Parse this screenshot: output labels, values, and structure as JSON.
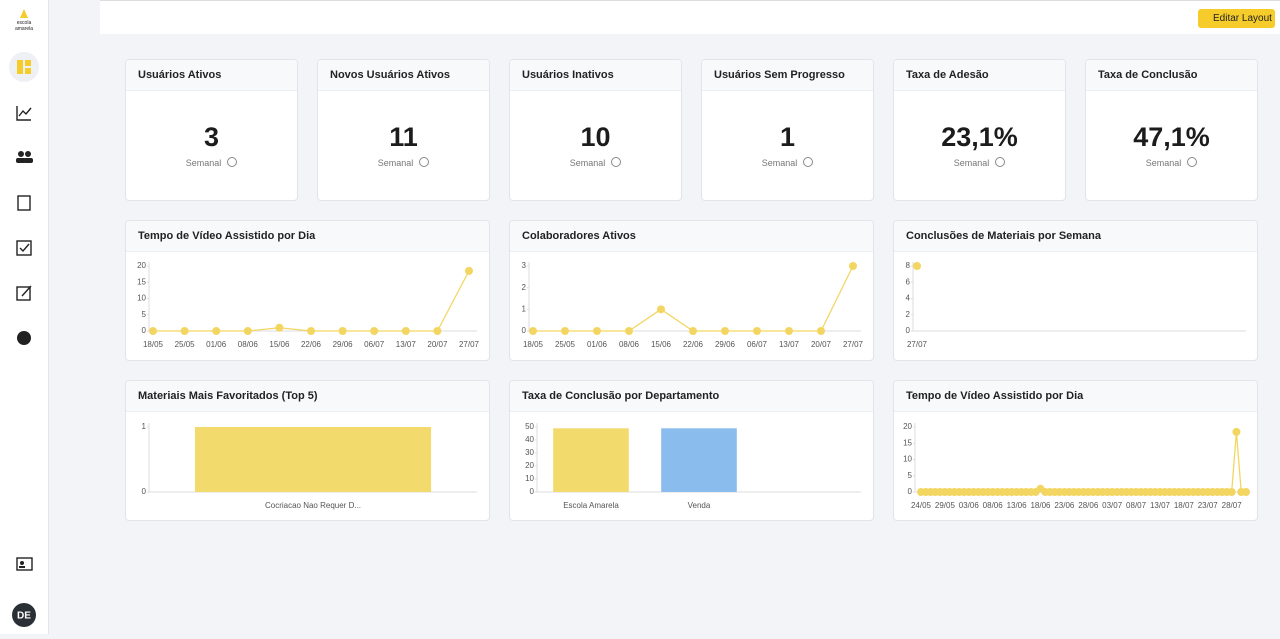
{
  "logo": [
    "escola",
    "amarela"
  ],
  "header": {
    "button": "Editar Layout"
  },
  "avatar": "DE",
  "kpis": [
    {
      "title": "Usuários Ativos",
      "value": "3",
      "period": "Semanal"
    },
    {
      "title": "Novos Usuários Ativos",
      "value": "11",
      "period": "Semanal"
    },
    {
      "title": "Usuários Inativos",
      "value": "10",
      "period": "Semanal"
    },
    {
      "title": "Usuários Sem Progresso",
      "value": "1",
      "period": "Semanal"
    },
    {
      "title": "Taxa de Adesão",
      "value": "23,1%",
      "period": "Semanal"
    },
    {
      "title": "Taxa de Conclusão",
      "value": "47,1%",
      "period": "Semanal"
    }
  ],
  "chart_data": [
    {
      "type": "line",
      "title": "Tempo de Vídeo Assistido por Dia",
      "color": "#f3d662",
      "categories": [
        "18/05",
        "25/05",
        "01/06",
        "08/06",
        "15/06",
        "22/06",
        "29/06",
        "06/07",
        "13/07",
        "20/07",
        "27/07"
      ],
      "values": [
        0,
        0,
        0,
        0,
        1,
        0,
        0,
        0,
        0,
        0,
        18.5
      ],
      "ylim": [
        0,
        20
      ],
      "yticks": [
        0,
        5,
        10,
        15,
        20
      ]
    },
    {
      "type": "line",
      "title": "Colaboradores Ativos",
      "color": "#f3d662",
      "categories": [
        "18/05",
        "25/05",
        "01/06",
        "08/06",
        "15/06",
        "22/06",
        "29/06",
        "06/07",
        "13/07",
        "20/07",
        "27/07"
      ],
      "values": [
        0,
        0,
        0,
        0,
        1,
        0,
        0,
        0,
        0,
        0,
        3
      ],
      "ylim": [
        0,
        3
      ],
      "yticks": [
        0,
        1,
        2,
        3
      ]
    },
    {
      "type": "line",
      "title": "Conclusões de Materiais por Semana",
      "color": "#f3d662",
      "categories": [
        "27/07"
      ],
      "values": [
        8
      ],
      "ylim": [
        0,
        8
      ],
      "yticks": [
        0,
        2,
        4,
        6,
        8
      ]
    },
    {
      "type": "bar",
      "title": "Materiais Mais Favoritados (Top 5)",
      "colors": [
        "#f3da6c"
      ],
      "categories": [
        "Cocriacao Nao Requer D..."
      ],
      "values": [
        1
      ],
      "ylim": [
        0,
        1
      ],
      "yticks": [
        0,
        1
      ]
    },
    {
      "type": "bar",
      "title": "Taxa de Conclusão por Departamento",
      "colors": [
        "#f3da6c",
        "#8bbcee"
      ],
      "categories": [
        "Escola Amarela",
        "Venda"
      ],
      "values": [
        49,
        49
      ],
      "ylim": [
        0,
        50
      ],
      "yticks": [
        0,
        10,
        20,
        30,
        40,
        50
      ]
    },
    {
      "type": "line",
      "title": "Tempo de Vídeo Assistido por Dia",
      "color": "#f3d662",
      "categories": [
        "24/05",
        null,
        null,
        null,
        null,
        "29/05",
        null,
        null,
        null,
        null,
        "03/06",
        null,
        null,
        null,
        null,
        "08/06",
        null,
        null,
        null,
        null,
        "13/06",
        null,
        null,
        null,
        null,
        "18/06",
        null,
        null,
        null,
        null,
        "23/06",
        null,
        null,
        null,
        null,
        "28/06",
        null,
        null,
        null,
        null,
        "03/07",
        null,
        null,
        null,
        null,
        "08/07",
        null,
        null,
        null,
        null,
        "13/07",
        null,
        null,
        null,
        null,
        "18/07",
        null,
        null,
        null,
        null,
        "23/07",
        null,
        null,
        null,
        null,
        "28/07",
        null,
        null,
        null
      ],
      "values": [
        0,
        0,
        0,
        0,
        0,
        0,
        0,
        0,
        0,
        0,
        0,
        0,
        0,
        0,
        0,
        0,
        0,
        0,
        0,
        0,
        0,
        0,
        0,
        0,
        0,
        1,
        0,
        0,
        0,
        0,
        0,
        0,
        0,
        0,
        0,
        0,
        0,
        0,
        0,
        0,
        0,
        0,
        0,
        0,
        0,
        0,
        0,
        0,
        0,
        0,
        0,
        0,
        0,
        0,
        0,
        0,
        0,
        0,
        0,
        0,
        0,
        0,
        0,
        0,
        0,
        0,
        18.5,
        0,
        0
      ],
      "ylim": [
        0,
        20
      ],
      "yticks": [
        0,
        5,
        10,
        15,
        20
      ]
    }
  ]
}
